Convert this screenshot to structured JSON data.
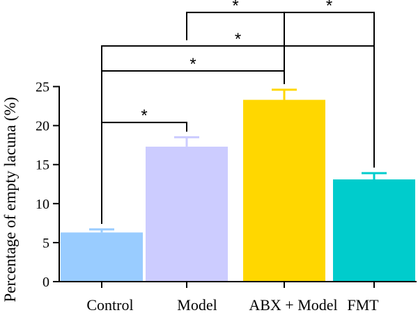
{
  "chart_data": {
    "type": "bar",
    "title": "",
    "xlabel": "",
    "ylabel": "Percentage of empty lacuna (%)",
    "ylim": [
      0,
      25
    ],
    "yticks": [
      0,
      5,
      10,
      15,
      20,
      25
    ],
    "categories": [
      "Control",
      "Model",
      "ABX + Model",
      "FMT"
    ],
    "values": [
      6.3,
      17.3,
      23.3,
      13.1
    ],
    "errors": [
      0.4,
      1.2,
      1.3,
      0.8
    ],
    "colors": [
      "#99ccff",
      "#ccccff",
      "#ffd700",
      "#00cccc"
    ],
    "significance": [
      {
        "from": 0,
        "to": 1,
        "label": "*",
        "y": 20.4
      },
      {
        "from": 0,
        "to": 2,
        "label": "*",
        "y": 27.0
      },
      {
        "from": 0,
        "to": 3,
        "label": "*",
        "y": 30.2
      },
      {
        "from": 1,
        "to": 2,
        "label": "*",
        "y": 34.5
      },
      {
        "from": 2,
        "to": 3,
        "label": "*",
        "y": 34.5
      }
    ]
  }
}
